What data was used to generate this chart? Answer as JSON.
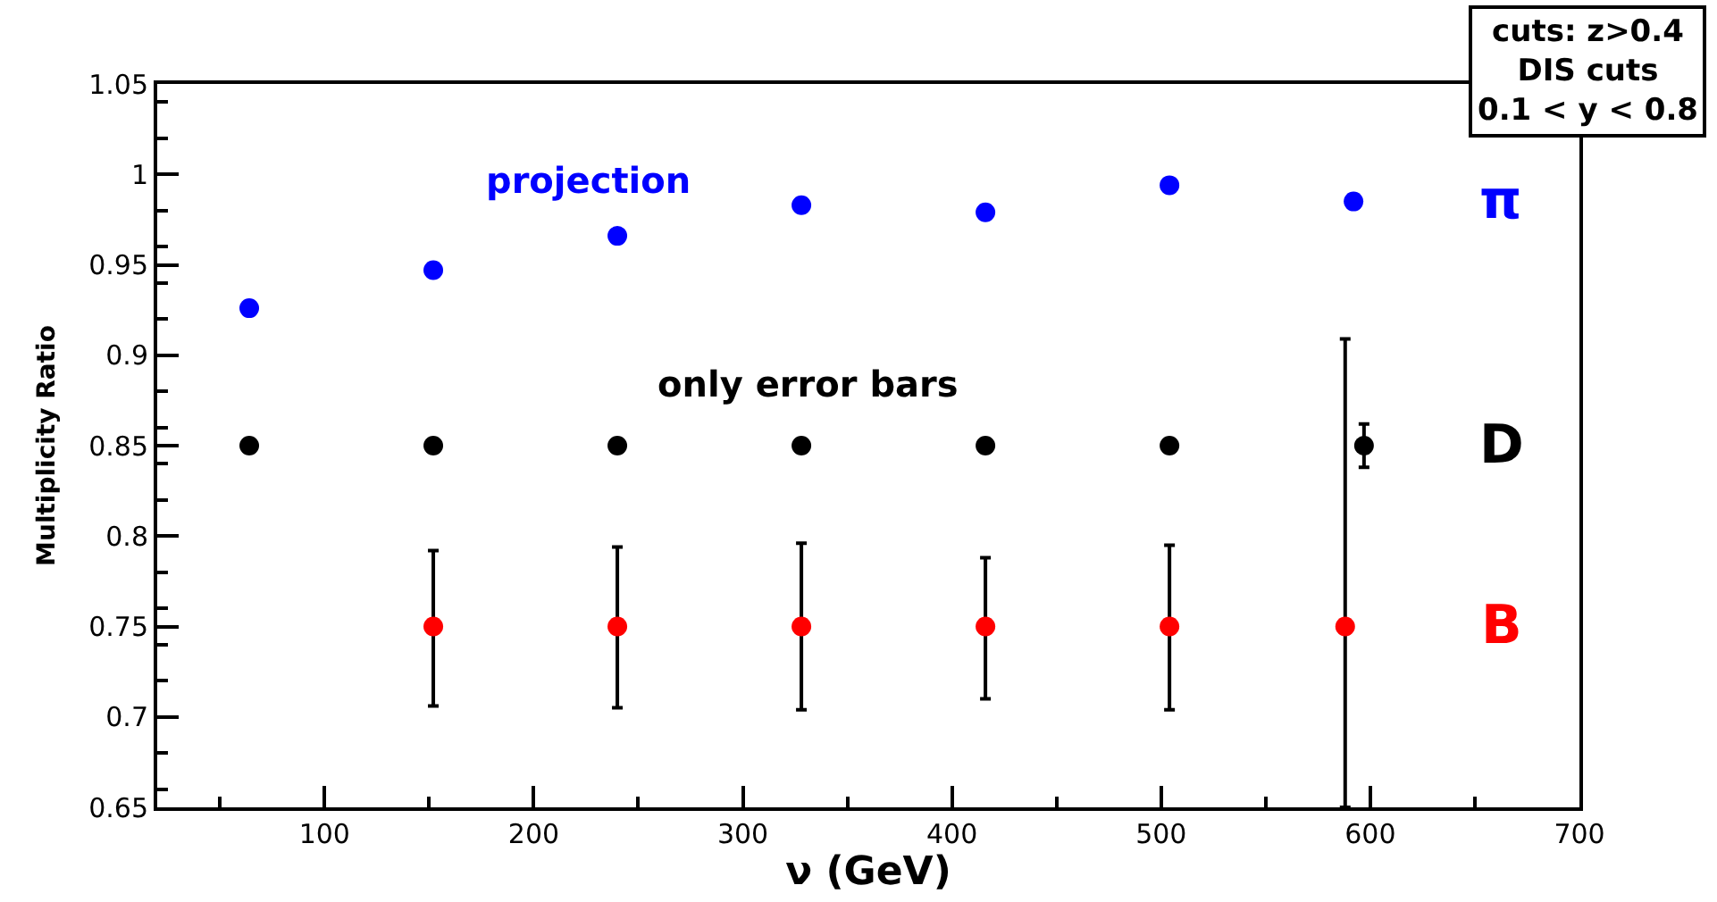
{
  "chart_data": {
    "type": "scatter",
    "xlabel": "ν (GeV)",
    "ylabel": "Multiplicity Ratio",
    "x": [
      64,
      152,
      240,
      328,
      416,
      504,
      592
    ],
    "series": [
      {
        "name": "π",
        "color": "#0000ff",
        "values": [
          0.926,
          0.947,
          0.966,
          0.983,
          0.979,
          0.994,
          0.985
        ]
      },
      {
        "name": "D",
        "color": "#000000",
        "x": [
          64,
          152,
          240,
          328,
          416,
          504,
          597
        ],
        "values": [
          0.85,
          0.85,
          0.85,
          0.85,
          0.85,
          0.85,
          0.85
        ],
        "errors": [
          null,
          null,
          null,
          null,
          null,
          null,
          [
            0.838,
            0.862
          ]
        ]
      },
      {
        "name": "B",
        "color": "#ff0000",
        "x": [
          152,
          240,
          328,
          416,
          504,
          588
        ],
        "values": [
          0.75,
          0.75,
          0.75,
          0.75,
          0.75,
          0.75
        ],
        "errors": [
          [
            0.706,
            0.792
          ],
          [
            0.705,
            0.794
          ],
          [
            0.704,
            0.796
          ],
          [
            0.71,
            0.788
          ],
          [
            0.704,
            0.795
          ],
          [
            0.65,
            0.909
          ]
        ]
      }
    ],
    "annotations": [
      "projection",
      "only error bars",
      "cuts: z>0.4\nDIS cuts\n0.1 < y < 0.8"
    ],
    "xlim": [
      20,
      700
    ],
    "xticks": [
      100,
      200,
      300,
      400,
      500,
      600,
      700
    ],
    "ylim": [
      0.65,
      1.05
    ],
    "yticks": [
      0.65,
      0.7,
      0.75,
      0.8,
      0.85,
      0.9,
      0.95,
      1,
      1.05
    ],
    "marker": "circle",
    "legend": false
  }
}
